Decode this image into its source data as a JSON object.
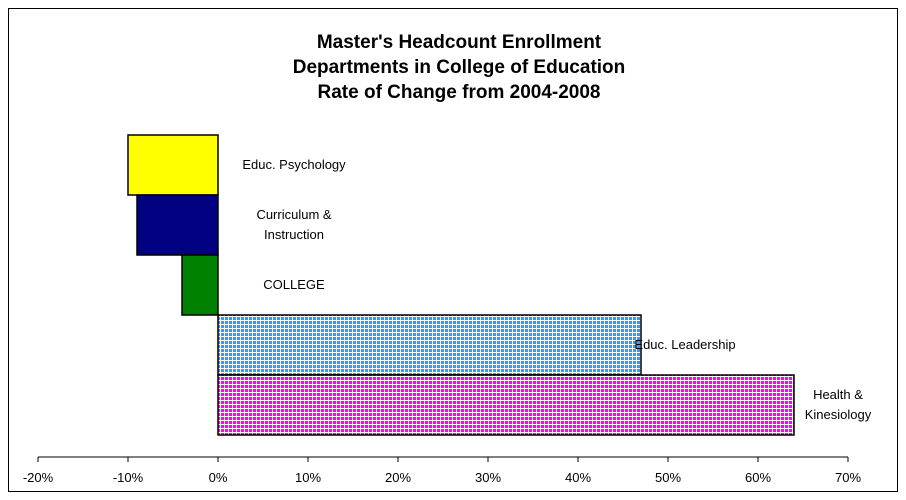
{
  "chart_data": {
    "type": "bar",
    "orientation": "horizontal",
    "title": [
      "Master's Headcount Enrollment",
      "Departments in College of Education",
      "Rate of Change from 2004-2008"
    ],
    "xlabel": "",
    "ylabel": "",
    "xlim": [
      -20,
      70
    ],
    "x_ticks": [
      "-20%",
      "-10%",
      "0%",
      "10%",
      "20%",
      "30%",
      "40%",
      "50%",
      "60%",
      "70%"
    ],
    "grid": false,
    "legend": "none",
    "categories": [
      {
        "label": [
          "Educ. Psychology"
        ],
        "value": -10,
        "color": "#ffff00",
        "pattern": "solid"
      },
      {
        "label": [
          "Curriculum &",
          "Instruction"
        ],
        "value": -9,
        "color": "#000080",
        "pattern": "solid"
      },
      {
        "label": [
          "COLLEGE"
        ],
        "value": -4,
        "color": "#008000",
        "pattern": "solid"
      },
      {
        "label": [
          "Educ. Leadership"
        ],
        "value": 47,
        "color": "#3399ff",
        "pattern": "grid"
      },
      {
        "label": [
          "Health &",
          "Kinesiology"
        ],
        "value": 64,
        "color": "#ff00ff",
        "pattern": "grid"
      }
    ]
  }
}
